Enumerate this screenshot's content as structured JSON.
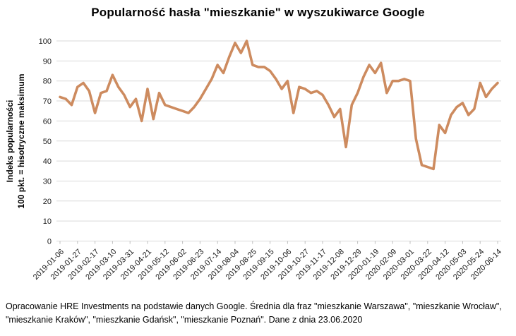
{
  "header": {
    "title": "Popularność hasła \"mieszkanie\" w wyszukiwarce Google"
  },
  "chart_data": {
    "type": "line",
    "title": "Popularność hasła \"mieszkanie\" w wyszukiwarce Google",
    "y_axis_title_line1": "Indeks popularności",
    "y_axis_title_line2": "100 pkt. = hisotryczne maksimum",
    "ylim": [
      0,
      100
    ],
    "y_tick_step": 10,
    "y_tick_labels": [
      "0",
      "10",
      "20",
      "30",
      "40",
      "50",
      "60",
      "70",
      "80",
      "90",
      "100"
    ],
    "x_tick_every": 3,
    "grid": "horizontal",
    "legend_position": "none",
    "line_color": "#CD8B5F",
    "grid_color": "#D9D9D9",
    "tick_color": "#BFBFBF",
    "dates": [
      "2019-01-06",
      "2019-01-13",
      "2019-01-20",
      "2019-01-27",
      "2019-02-03",
      "2019-02-10",
      "2019-02-17",
      "2019-02-24",
      "2019-03-03",
      "2019-03-10",
      "2019-03-17",
      "2019-03-24",
      "2019-03-31",
      "2019-04-07",
      "2019-04-14",
      "2019-04-21",
      "2019-04-28",
      "2019-05-05",
      "2019-05-12",
      "2019-05-19",
      "2019-05-26",
      "2019-06-02",
      "2019-06-09",
      "2019-06-16",
      "2019-06-23",
      "2019-06-30",
      "2019-07-07",
      "2019-07-14",
      "2019-07-21",
      "2019-07-28",
      "2019-08-04",
      "2019-08-11",
      "2019-08-18",
      "2019-08-25",
      "2019-09-01",
      "2019-09-08",
      "2019-09-15",
      "2019-09-22",
      "2019-09-29",
      "2019-10-06",
      "2019-10-13",
      "2019-10-20",
      "2019-10-27",
      "2019-11-03",
      "2019-11-10",
      "2019-11-17",
      "2019-11-24",
      "2019-12-01",
      "2019-12-08",
      "2019-12-15",
      "2019-12-22",
      "2019-12-29",
      "2020-01-05",
      "2020-01-12",
      "2020-01-19",
      "2020-01-26",
      "2020-02-02",
      "2020-02-09",
      "2020-02-16",
      "2020-02-23",
      "2020-03-01",
      "2020-03-08",
      "2020-03-15",
      "2020-03-22",
      "2020-03-29",
      "2020-04-05",
      "2020-04-12",
      "2020-04-19",
      "2020-04-26",
      "2020-05-03",
      "2020-05-10",
      "2020-05-17",
      "2020-05-24",
      "2020-05-31",
      "2020-06-07",
      "2020-06-14"
    ],
    "values": [
      72,
      71,
      68,
      77,
      79,
      75,
      64,
      74,
      75,
      83,
      77,
      73,
      67,
      71,
      60,
      76,
      61,
      74,
      68,
      67,
      66,
      65,
      64,
      67,
      71,
      76,
      81,
      88,
      84,
      92,
      99,
      94,
      100,
      88,
      87,
      87,
      85,
      81,
      76,
      80,
      64,
      77,
      76,
      74,
      75,
      73,
      68,
      62,
      66,
      47,
      68,
      74,
      82,
      88,
      84,
      89,
      74,
      80,
      80,
      81,
      80,
      51,
      38,
      37,
      36,
      58,
      54,
      63,
      67,
      69,
      63,
      66,
      79,
      72,
      76,
      79
    ]
  },
  "footer": {
    "text": "Opracowanie HRE Investments na podstawie danych Google. Średnia dla fraz \"mieszkanie Warszawa\", \"mieszkanie Wrocław\", \"mieszkanie Kraków\", \"mieszkanie Gdańsk\", \"mieszkanie Poznań\". Dane z dnia 23.06.2020"
  }
}
